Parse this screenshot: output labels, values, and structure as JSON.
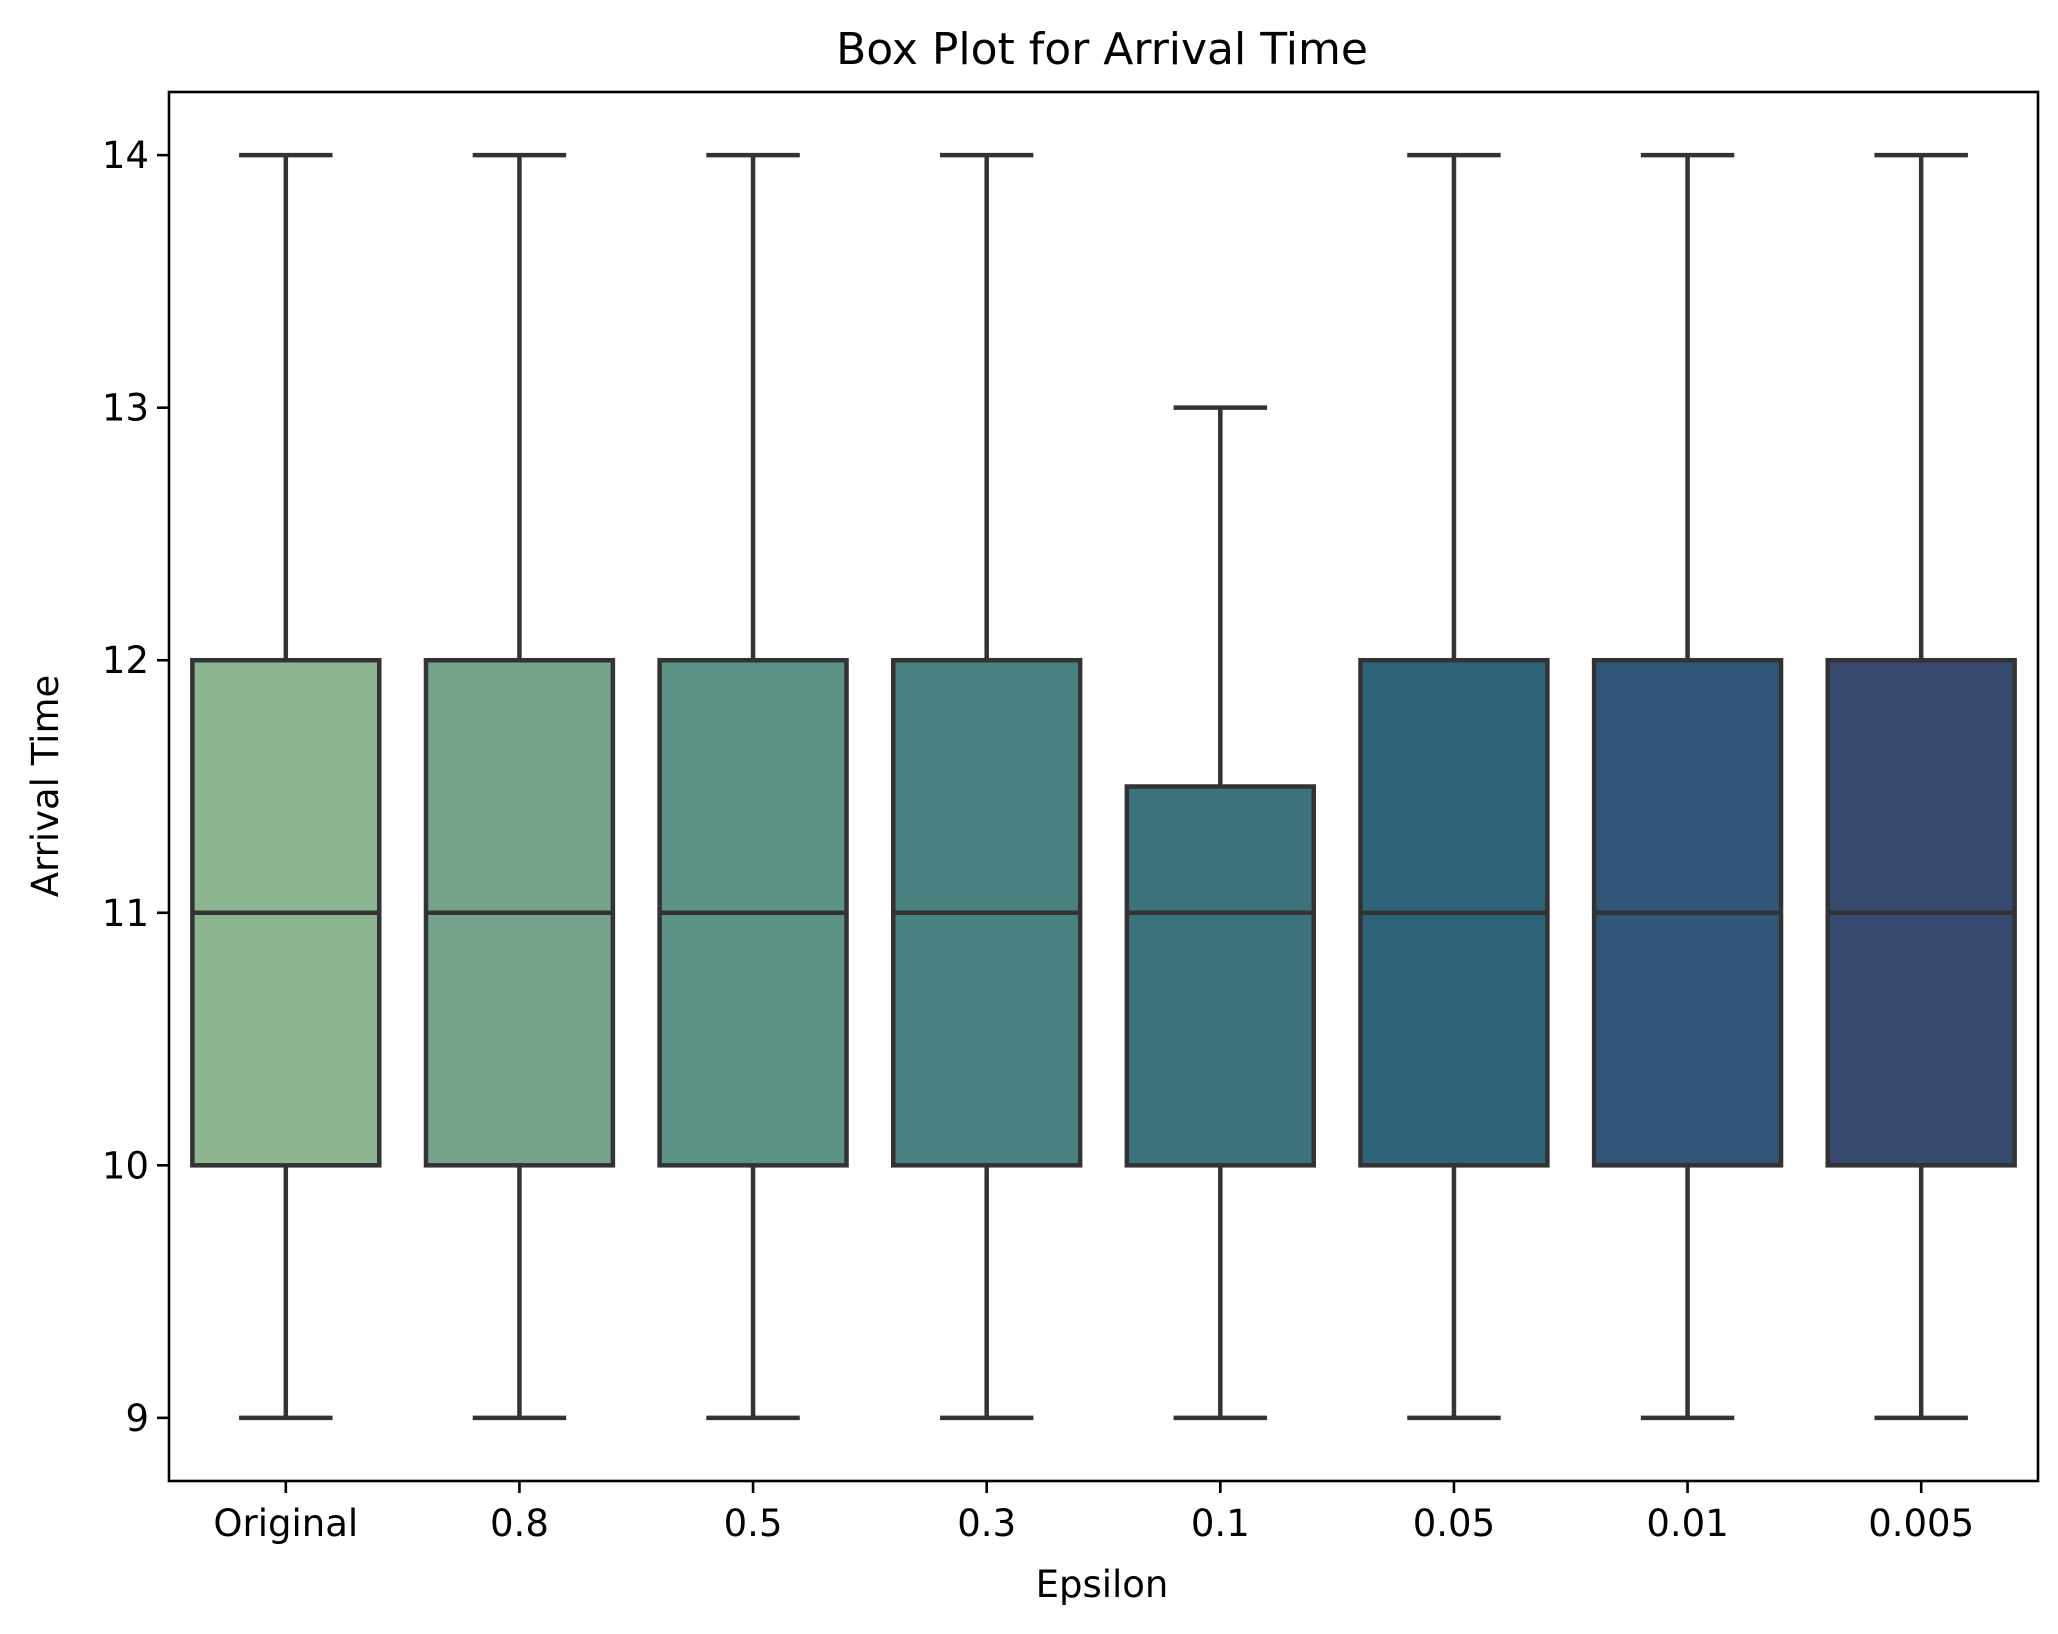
{
  "chart_data": {
    "type": "box",
    "title": "Box Plot for Arrival Time",
    "xlabel": "Epsilon",
    "ylabel": "Arrival Time",
    "ylim": [
      8.75,
      14.25
    ],
    "yticks": [
      9,
      10,
      11,
      12,
      13,
      14
    ],
    "grid": false,
    "categories": [
      "Original",
      "0.8",
      "0.5",
      "0.3",
      "0.1",
      "0.05",
      "0.01",
      "0.005"
    ],
    "boxes": [
      {
        "category": "Original",
        "whisker_low": 9,
        "q1": 10,
        "median": 11,
        "q3": 12,
        "whisker_high": 14,
        "color": "#8db592"
      },
      {
        "category": "0.8",
        "whisker_low": 9,
        "q1": 10,
        "median": 11,
        "q3": 12,
        "whisker_high": 14,
        "color": "#75a38c"
      },
      {
        "category": "0.5",
        "whisker_low": 9,
        "q1": 10,
        "median": 11,
        "q3": 12,
        "whisker_high": 14,
        "color": "#5d9287"
      },
      {
        "category": "0.3",
        "whisker_low": 9,
        "q1": 10,
        "median": 11,
        "q3": 12,
        "whisker_high": 14,
        "color": "#498180"
      },
      {
        "category": "0.1",
        "whisker_low": 9,
        "q1": 10,
        "median": 11,
        "q3": 11.5,
        "whisker_high": 13,
        "color": "#3b727b"
      },
      {
        "category": "0.05",
        "whisker_low": 9,
        "q1": 10,
        "median": 11,
        "q3": 12,
        "whisker_high": 14,
        "color": "#2e6479"
      },
      {
        "category": "0.01",
        "whisker_low": 9,
        "q1": 10,
        "median": 11,
        "q3": 12,
        "whisker_high": 14,
        "color": "#305678"
      },
      {
        "category": "0.005",
        "whisker_low": 9,
        "q1": 10,
        "median": 11,
        "q3": 12,
        "whisker_high": 14,
        "color": "#364a70"
      }
    ]
  }
}
